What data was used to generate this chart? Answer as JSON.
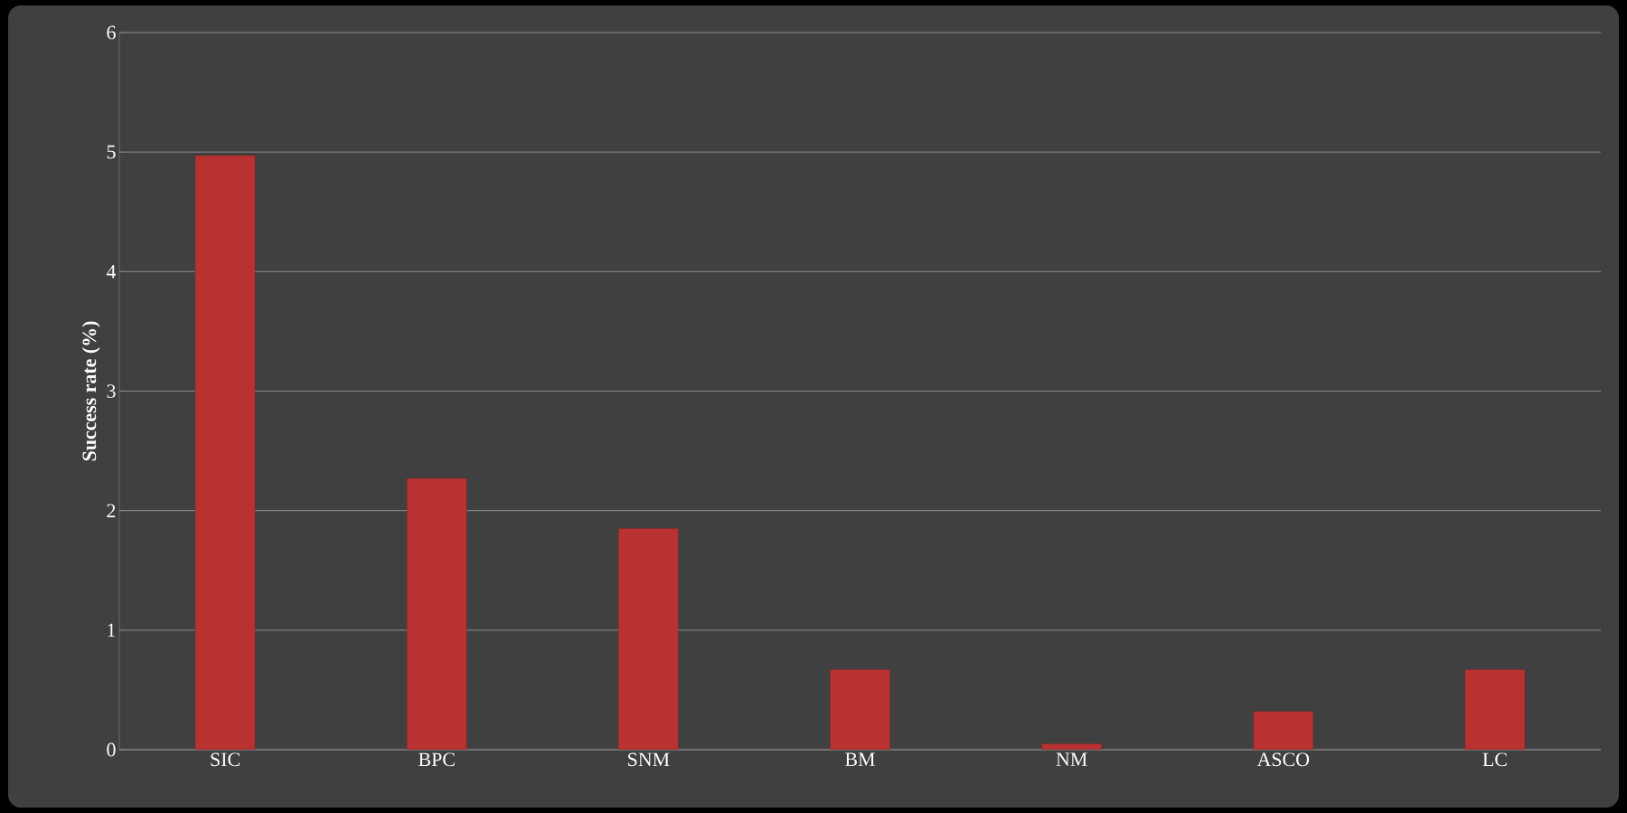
{
  "chart_data": {
    "type": "bar",
    "ylabel": "**Success rate (%)**",
    "categories": [
      "SIC",
      "BPC",
      "SNM",
      "BM",
      "NM",
      "ASCO",
      "LC"
    ],
    "values": [
      4.97,
      2.27,
      1.85,
      0.67,
      0.05,
      0.32,
      0.67
    ],
    "color": "#b83232",
    "ylim": [
      0,
      6
    ],
    "yticks": [
      0,
      1,
      2,
      3,
      4,
      5,
      6
    ],
    "grid": "y"
  }
}
